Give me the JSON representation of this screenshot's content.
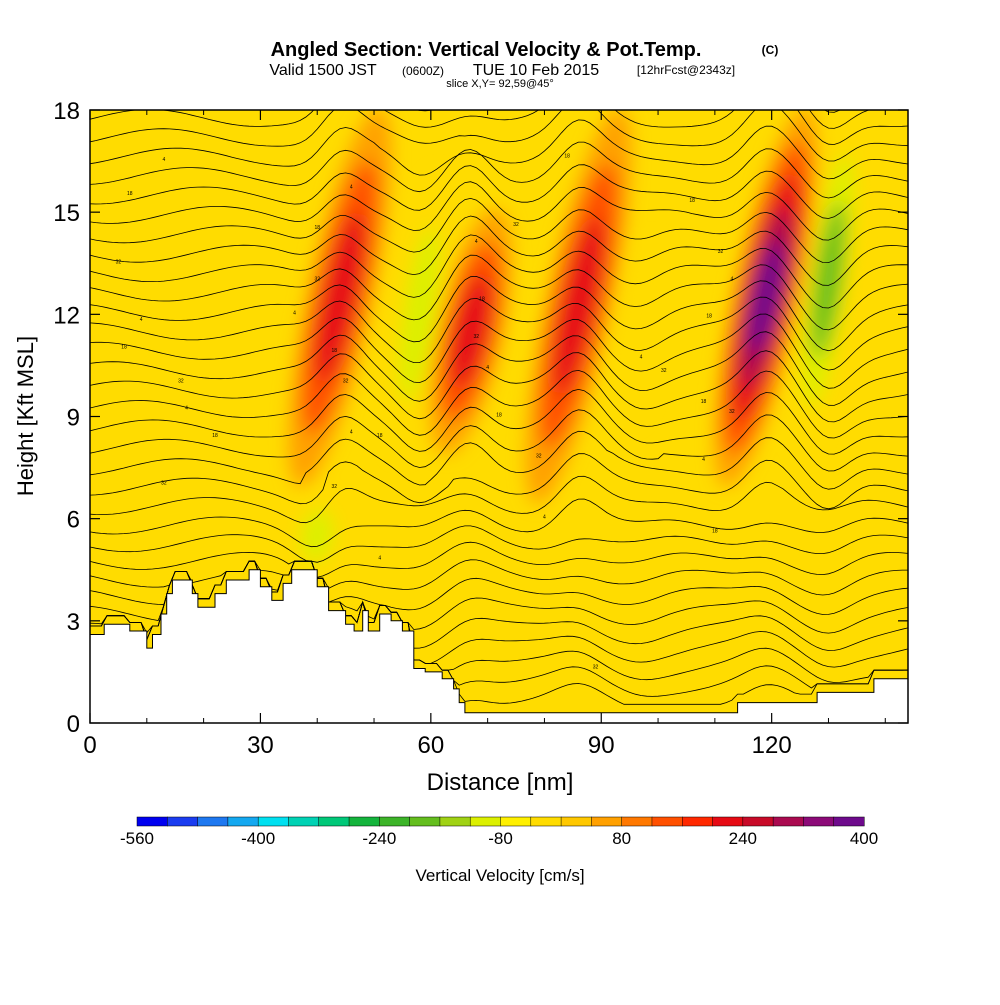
{
  "header": {
    "title": "Angled Section: Vertical Velocity & Pot.Temp.",
    "title_unit": "(C)",
    "valid_prefix": "Valid 1500 JST",
    "valid_utc": "(0600Z)",
    "valid_date": "TUE 10 Feb 2015",
    "forecast": "[12hrFcst@2343z]",
    "slice": "slice X,Y= 92,59@45°"
  },
  "chart_data": {
    "type": "heatmap",
    "xlabel": "Distance [nm]",
    "ylabel": "Height [Kft MSL]",
    "xlim": [
      0,
      144
    ],
    "ylim": [
      0,
      18
    ],
    "x_ticks": [
      0,
      30,
      60,
      90,
      120
    ],
    "y_ticks": [
      0,
      3,
      6,
      9,
      12,
      15,
      18
    ],
    "colorbar": {
      "label": "Vertical Velocity [cm/s]",
      "min": -560,
      "max": 400,
      "step": 40,
      "tick_values": [
        -560,
        -400,
        -240,
        -80,
        80,
        240,
        400
      ],
      "colors": [
        "#0000f0",
        "#1a3cf0",
        "#1e78f0",
        "#14a8f0",
        "#00e0f0",
        "#00d2b4",
        "#00c878",
        "#14b43c",
        "#3cb428",
        "#64be1e",
        "#a0d214",
        "#dcf000",
        "#fff000",
        "#ffdc00",
        "#ffc800",
        "#ffa000",
        "#ff7800",
        "#ff5000",
        "#ff2800",
        "#e60a14",
        "#c80a28",
        "#aa0a50",
        "#8c0a78",
        "#6e0a8c"
      ]
    },
    "velocity_features": [
      {
        "kind": "updraft",
        "x": 44,
        "y_range": [
          7,
          18
        ],
        "peak": 240
      },
      {
        "kind": "downdraft",
        "x": 40,
        "y_range": [
          4.5,
          6.5
        ],
        "peak": -120
      },
      {
        "kind": "downdraft",
        "x": 58,
        "y_range": [
          8,
          16
        ],
        "peak": -160
      },
      {
        "kind": "updraft",
        "x": 67,
        "y_range": [
          8,
          15
        ],
        "peak": 240
      },
      {
        "kind": "updraft",
        "x": 86,
        "y_range": [
          6.5,
          18
        ],
        "peak": 240
      },
      {
        "kind": "downdraft",
        "x": 97,
        "y_range": [
          9,
          14
        ],
        "peak": -80
      },
      {
        "kind": "updraft",
        "x": 119,
        "y_range": [
          7,
          18
        ],
        "peak": 360
      },
      {
        "kind": "downdraft",
        "x": 130,
        "y_range": [
          8,
          18
        ],
        "peak": -200
      }
    ],
    "terrain": [
      [
        0,
        3.2
      ],
      [
        0,
        2.6
      ],
      [
        2.5,
        2.6
      ],
      [
        2.5,
        2.9
      ],
      [
        7,
        2.9
      ],
      [
        7,
        2.7
      ],
      [
        10,
        2.7
      ],
      [
        10,
        2.2
      ],
      [
        11,
        2.2
      ],
      [
        11,
        2.6
      ],
      [
        12.5,
        2.6
      ],
      [
        12.5,
        3.2
      ],
      [
        13.5,
        3.2
      ],
      [
        13.5,
        3.8
      ],
      [
        14.5,
        3.8
      ],
      [
        14.5,
        4.2
      ],
      [
        18,
        4.2
      ],
      [
        18,
        3.8
      ],
      [
        19,
        3.8
      ],
      [
        19,
        3.4
      ],
      [
        22,
        3.4
      ],
      [
        22,
        3.8
      ],
      [
        24,
        3.8
      ],
      [
        24,
        4.2
      ],
      [
        28,
        4.2
      ],
      [
        28,
        4.5
      ],
      [
        30,
        4.5
      ],
      [
        30,
        4.0
      ],
      [
        32,
        4.0
      ],
      [
        32,
        3.6
      ],
      [
        34,
        3.6
      ],
      [
        34,
        4.1
      ],
      [
        35.5,
        4.1
      ],
      [
        35.5,
        4.5
      ],
      [
        40,
        4.5
      ],
      [
        40,
        4.0
      ],
      [
        42,
        4.0
      ],
      [
        42,
        3.3
      ],
      [
        45,
        3.3
      ],
      [
        45,
        2.9
      ],
      [
        46.5,
        2.9
      ],
      [
        46.5,
        2.7
      ],
      [
        48,
        2.7
      ],
      [
        48,
        3.3
      ],
      [
        49,
        3.3
      ],
      [
        49,
        2.7
      ],
      [
        51,
        2.7
      ],
      [
        51,
        3.2
      ],
      [
        53,
        3.2
      ],
      [
        53,
        3.0
      ],
      [
        55,
        3.0
      ],
      [
        55,
        2.7
      ],
      [
        57,
        2.7
      ],
      [
        57,
        1.6
      ],
      [
        59,
        1.6
      ],
      [
        59,
        1.5
      ],
      [
        62,
        1.5
      ],
      [
        62,
        1.3
      ],
      [
        64,
        1.3
      ],
      [
        64,
        1.0
      ],
      [
        65,
        1.0
      ],
      [
        65,
        0.6
      ],
      [
        66,
        0.6
      ],
      [
        66,
        0.3
      ],
      [
        114,
        0.3
      ],
      [
        114,
        0.6
      ],
      [
        128,
        0.6
      ],
      [
        128,
        0.9
      ],
      [
        138,
        0.9
      ],
      [
        138,
        1.3
      ],
      [
        144,
        1.3
      ],
      [
        144,
        0
      ],
      [
        0,
        0
      ]
    ],
    "theta_contours": {
      "interval_c": 1,
      "surface_theta_c": 4,
      "label_values": [
        "4",
        "6",
        "8",
        "10",
        "12",
        "14",
        "16",
        "18",
        "20",
        "22",
        "24",
        "26",
        "28",
        "30",
        "32",
        "34",
        "36",
        "38",
        "40",
        "42",
        "44"
      ]
    }
  }
}
